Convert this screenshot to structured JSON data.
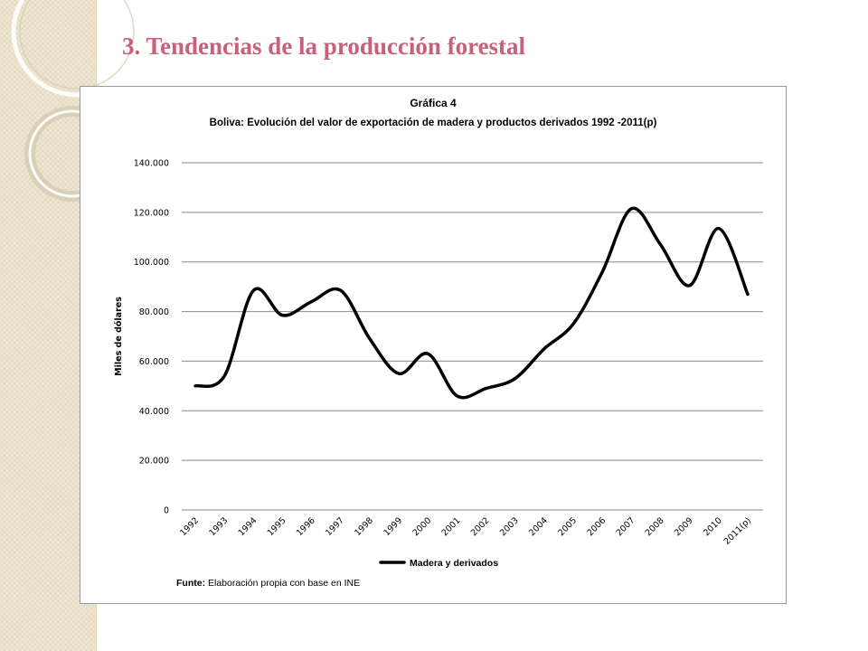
{
  "slide": {
    "title": "3. Tendencias de la producción forestal"
  },
  "chart_data": {
    "type": "line",
    "title": "Gráfica 4",
    "subtitle": "Boliva: Evolución del valor de exportación de madera y productos derivados 1992 -2011(p)",
    "xlabel": "",
    "ylabel": "Miles de dólares",
    "categories": [
      "1992",
      "1993",
      "1994",
      "1995",
      "1996",
      "1997",
      "1998",
      "1999",
      "2000",
      "2001",
      "2002",
      "2003",
      "2004",
      "2005",
      "2006",
      "2007",
      "2008",
      "2009",
      "2010",
      "2011(p)"
    ],
    "series": [
      {
        "name": "Madera y derivados",
        "color": "#000000",
        "values": [
          50000,
          54000,
          88500,
          78500,
          84000,
          88500,
          69000,
          55000,
          63000,
          46000,
          49000,
          53000,
          65000,
          75000,
          96000,
          121500,
          107000,
          90500,
          113500,
          87000
        ]
      }
    ],
    "ylim": [
      0,
      140000
    ],
    "yticks": [
      0,
      20000,
      40000,
      60000,
      80000,
      100000,
      120000,
      140000
    ],
    "ytick_labels": [
      "0",
      "20.000",
      "40.000",
      "60.000",
      "80.000",
      "100.000",
      "120.000",
      "140.000"
    ],
    "grid": true,
    "legend_position": "bottom",
    "smooth": true
  },
  "source": {
    "label": "Funte:",
    "text": " Elaboración propia con base en INE"
  }
}
